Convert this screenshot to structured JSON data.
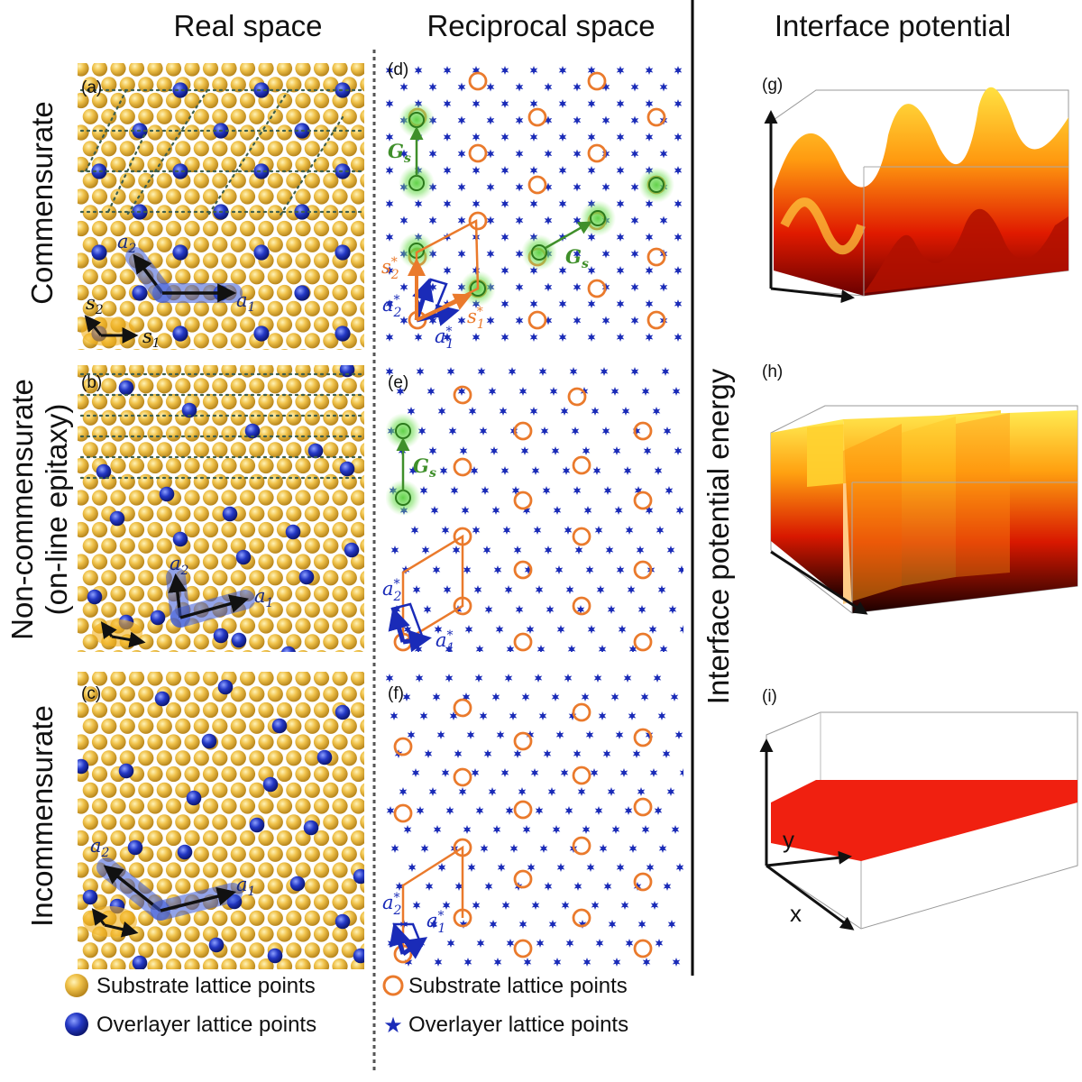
{
  "headers": {
    "real_space": "Real space",
    "reciprocal_space": "Reciprocal space",
    "interface_potential": "Interface potential"
  },
  "row_labels": {
    "commensurate": "Commensurate",
    "noncommensurate_line1": "Non-commensurate",
    "noncommensurate_line2": "(on-line epitaxy)",
    "incommensurate": "Incommensurate"
  },
  "y_axis_label": "Interface potential energy",
  "panels": {
    "a": "(a)",
    "b": "(b)",
    "c": "(c)",
    "d": "(d)",
    "e": "(e)",
    "f": "(f)",
    "g": "(g)",
    "h": "(h)",
    "i": "(i)"
  },
  "vectors": {
    "a1": "a",
    "a1_sub": "1",
    "a2": "a",
    "a2_sub": "2",
    "s1": "s",
    "s1_sub": "1",
    "s2": "s",
    "s2_sub": "2",
    "a1_star": "a",
    "a1_star_sub": "1",
    "a1_star_sup": "*",
    "a2_star": "a",
    "a2_star_sub": "2",
    "a2_star_sup": "*",
    "s1_star": "s",
    "s1_star_sub": "1",
    "s1_star_sup": "*",
    "s2_star": "s",
    "s2_star_sub": "2",
    "s2_star_sup": "*",
    "Gs": "G",
    "Gs_sub": "s"
  },
  "axes": {
    "x": "x",
    "y": "y"
  },
  "legend": {
    "real_substrate": "Substrate lattice points",
    "real_overlayer": "Overlayer lattice points",
    "recip_substrate": "Substrate lattice points",
    "recip_overlayer": "Overlayer lattice points"
  },
  "colors": {
    "substrate_gold": "#e3b13a",
    "overlayer_blue": "#1f2fa8",
    "recip_orange": "#ea7a2c",
    "recip_star_blue": "#1a2bb8",
    "g_vector_green": "#3f8f2a",
    "glow_green": "#74e05a",
    "dotted_line": "#3d5e4c"
  }
}
